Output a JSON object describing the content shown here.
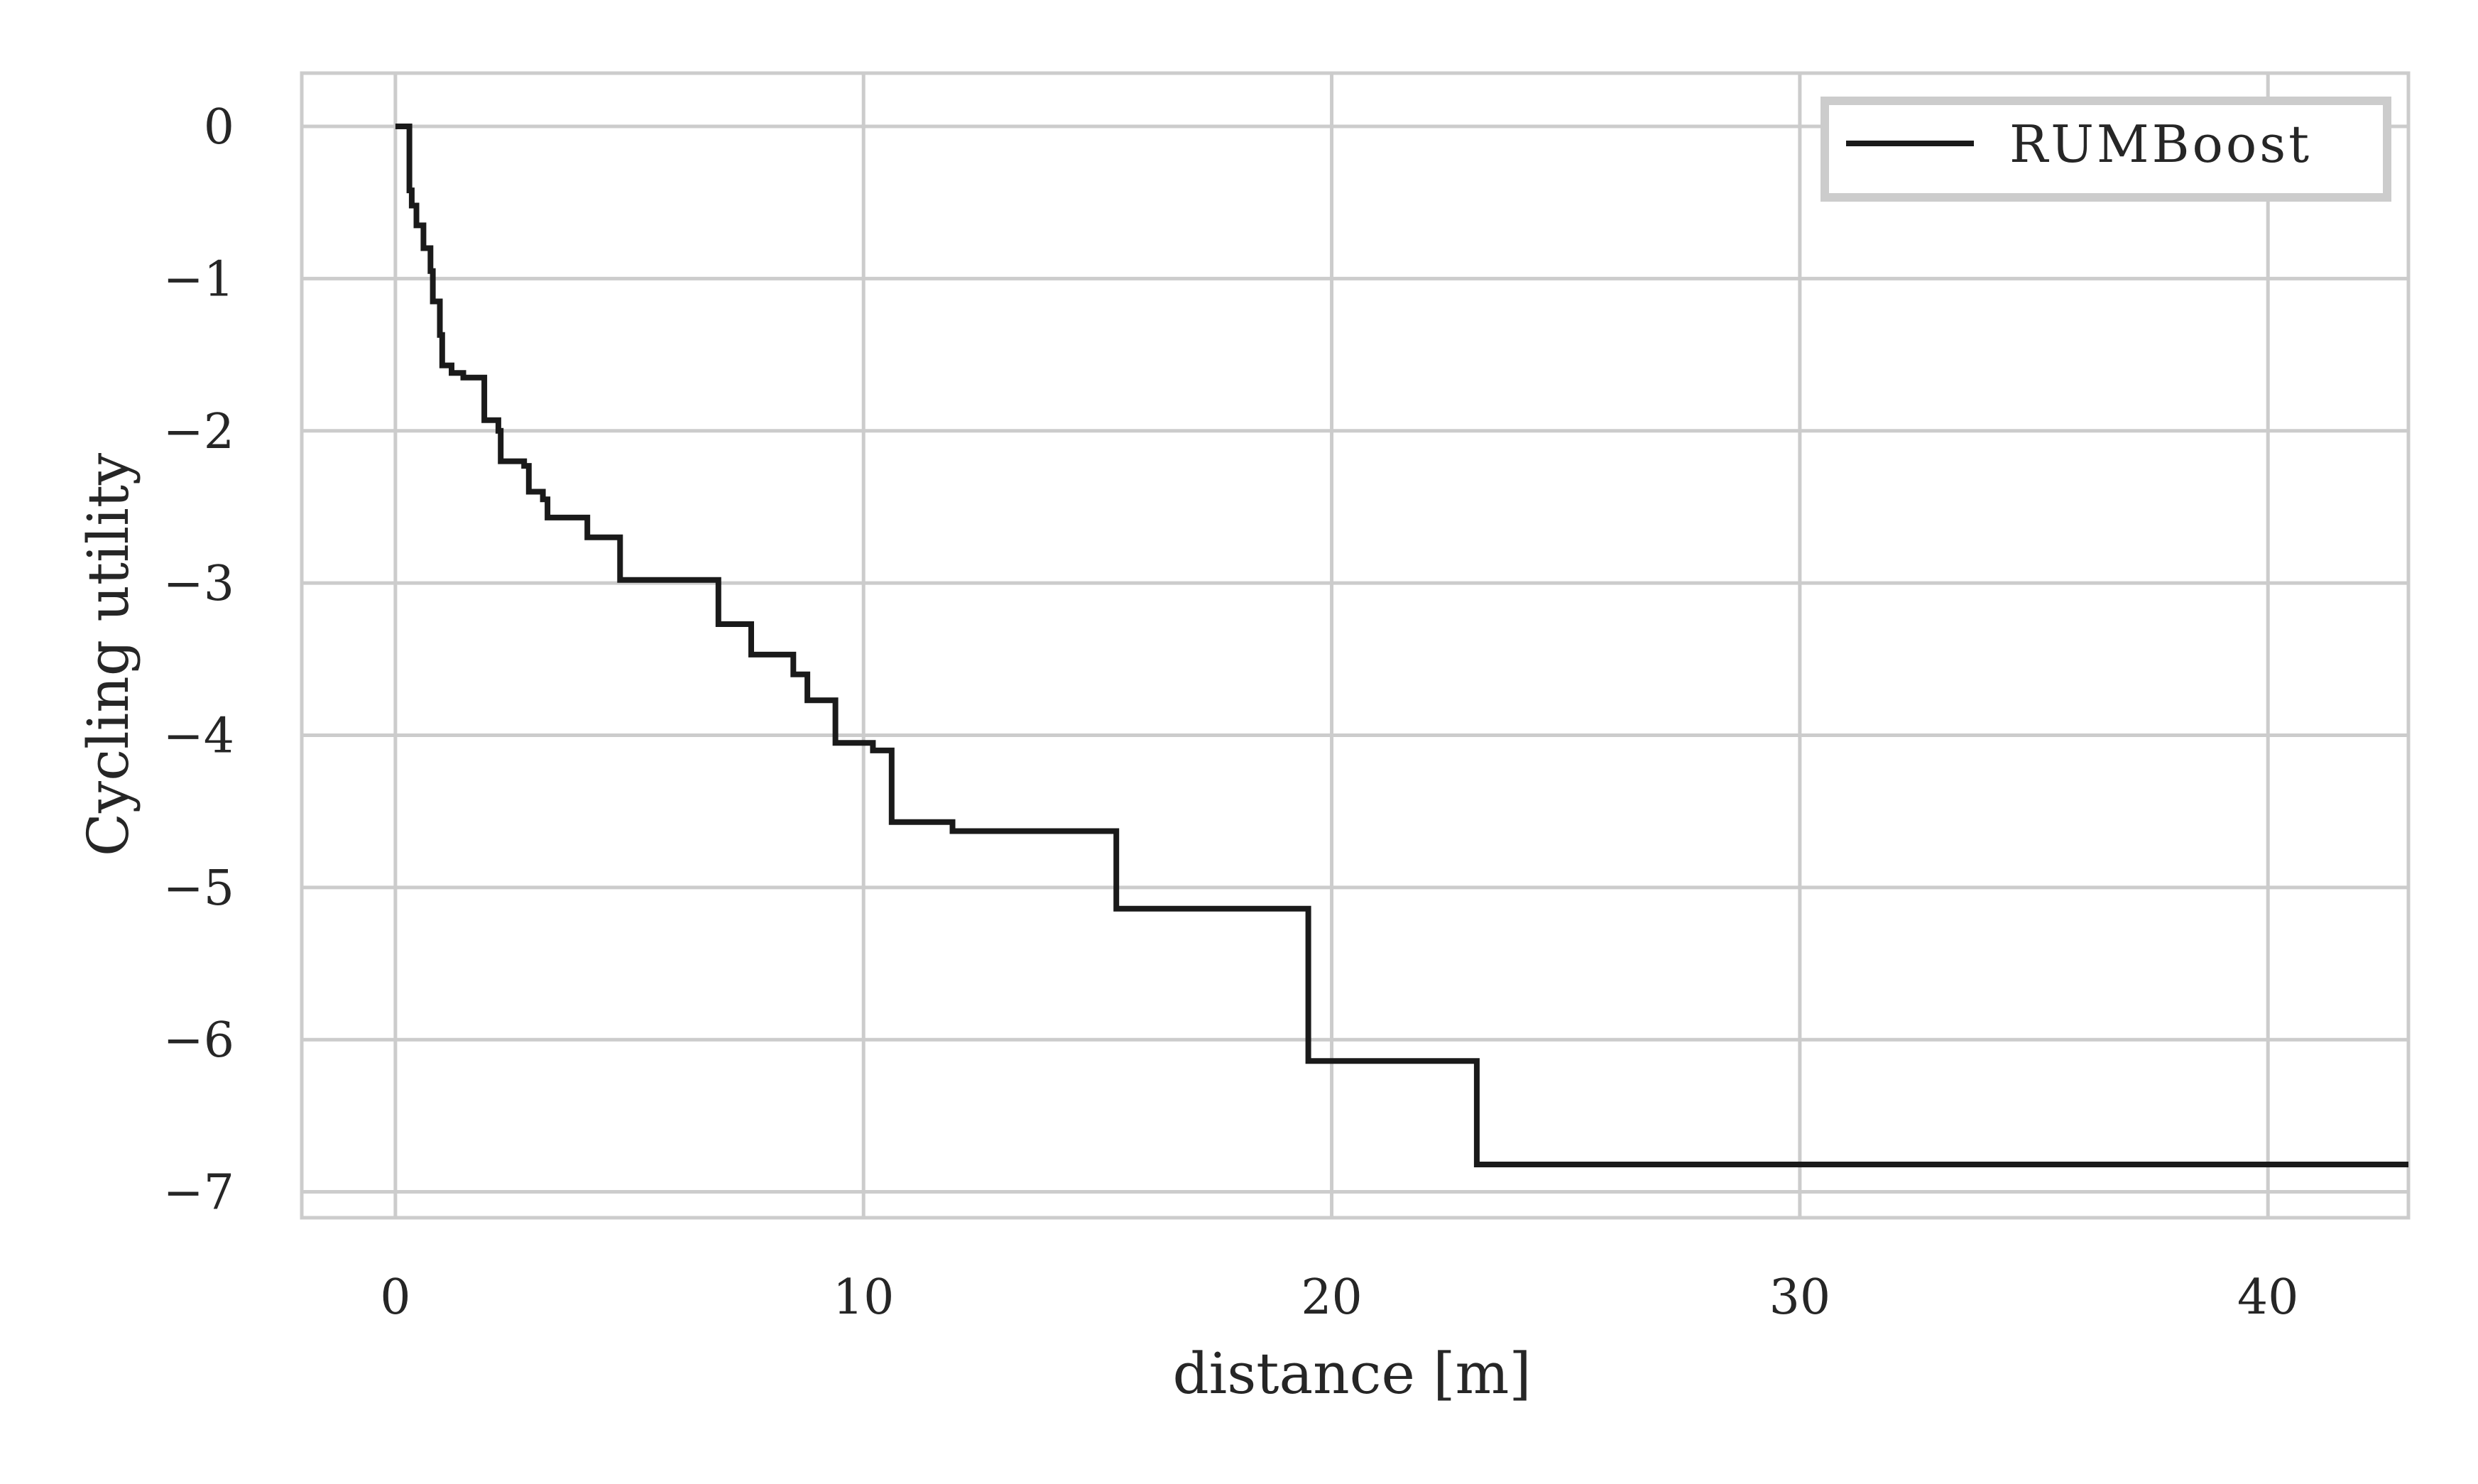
{
  "chart_data": {
    "type": "line",
    "step": true,
    "xlabel": "distance [m]",
    "ylabel": "Cycling utility",
    "xlim": [
      -2,
      43
    ],
    "ylim": [
      -7.17,
      0.35
    ],
    "grid": true,
    "legend_position": "top-right",
    "x_ticks": [
      0,
      10,
      20,
      30,
      40
    ],
    "x_tick_labels": [
      "0",
      "10",
      "20",
      "30",
      "40"
    ],
    "y_ticks": [
      0,
      -1,
      -2,
      -3,
      -4,
      -5,
      -6,
      -7
    ],
    "y_tick_labels": [
      "0",
      "−1",
      "−2",
      "−3",
      "−4",
      "−5",
      "−6",
      "−7"
    ],
    "series": [
      {
        "name": "RUMBoost",
        "color": "#1a1a1a",
        "points": [
          [
            0,
            0
          ],
          [
            0.3,
            -0.42
          ],
          [
            0.35,
            -0.52
          ],
          [
            0.45,
            -0.65
          ],
          [
            0.6,
            -0.8
          ],
          [
            0.75,
            -0.95
          ],
          [
            0.8,
            -1.15
          ],
          [
            0.95,
            -1.37
          ],
          [
            1.0,
            -1.57
          ],
          [
            1.2,
            -1.62
          ],
          [
            1.45,
            -1.65
          ],
          [
            1.9,
            -1.93
          ],
          [
            2.2,
            -2.0
          ],
          [
            2.25,
            -2.2
          ],
          [
            2.75,
            -2.23
          ],
          [
            2.85,
            -2.4
          ],
          [
            3.15,
            -2.45
          ],
          [
            3.25,
            -2.57
          ],
          [
            4.1,
            -2.7
          ],
          [
            4.8,
            -2.98
          ],
          [
            6.9,
            -3.27
          ],
          [
            7.6,
            -3.47
          ],
          [
            8.5,
            -3.6
          ],
          [
            8.8,
            -3.77
          ],
          [
            9.4,
            -4.05
          ],
          [
            10.2,
            -4.1
          ],
          [
            10.6,
            -4.57
          ],
          [
            11.9,
            -4.63
          ],
          [
            15.4,
            -5.14
          ],
          [
            19.5,
            -6.14
          ],
          [
            23.1,
            -6.82
          ],
          [
            43,
            -6.82
          ]
        ]
      }
    ]
  }
}
